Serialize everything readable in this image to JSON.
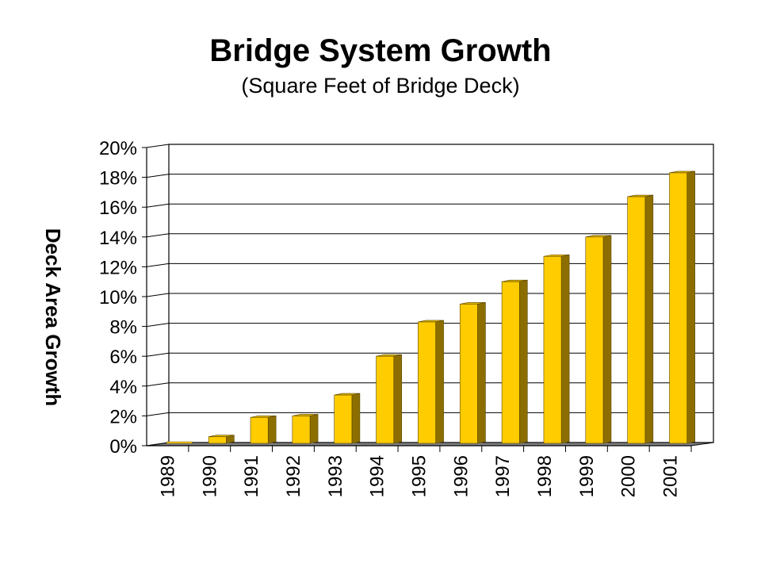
{
  "chart_data": {
    "type": "bar",
    "title": "Bridge System Growth",
    "subtitle": "(Square Feet of Bridge Deck)",
    "ylabel": "Deck Area Growth",
    "xlabel": "",
    "categories": [
      "1989",
      "1990",
      "1991",
      "1992",
      "1993",
      "1994",
      "1995",
      "1996",
      "1997",
      "1998",
      "1999",
      "2000",
      "2001"
    ],
    "values": [
      0.0,
      0.6,
      1.9,
      2.0,
      3.4,
      6.0,
      8.3,
      9.5,
      11.0,
      12.7,
      14.0,
      16.7,
      18.3
    ],
    "ylim": [
      0,
      20
    ],
    "yticks": [
      0,
      2,
      4,
      6,
      8,
      10,
      12,
      14,
      16,
      18,
      20
    ],
    "ytick_labels": [
      "0%",
      "2%",
      "4%",
      "6%",
      "8%",
      "10%",
      "12%",
      "14%",
      "16%",
      "18%",
      "20%"
    ],
    "grid": true,
    "legend": "none",
    "three_d": true,
    "colors": {
      "bar_front": "#FFCC00",
      "bar_side": "#8C6E00",
      "bar_top": "#E6B800",
      "grid": "#000000",
      "floor": "#808080"
    }
  }
}
